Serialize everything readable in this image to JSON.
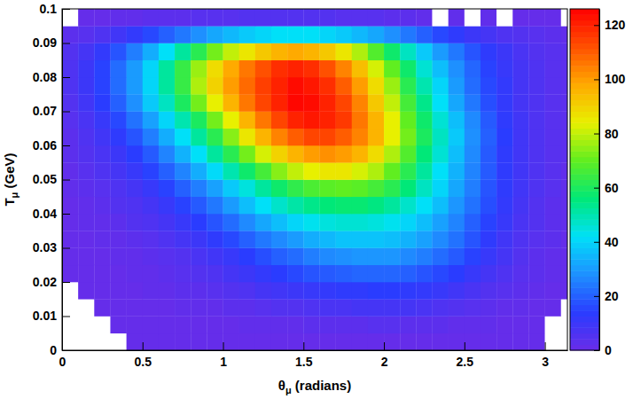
{
  "chart_data": {
    "type": "heatmap",
    "x_label": "θμ (radians)",
    "y_label": "Tμ (GeV)",
    "xlim": [
      0,
      3.14
    ],
    "ylim": [
      0,
      0.1
    ],
    "xticks": [
      0,
      0.5,
      1,
      1.5,
      2,
      2.5,
      3
    ],
    "yticks": [
      0,
      0.01,
      0.02,
      0.03,
      0.04,
      0.05,
      0.06,
      0.07,
      0.08,
      0.09,
      0.1
    ],
    "x_bins": [
      0,
      0.1,
      0.2,
      0.3,
      0.4,
      0.5,
      0.6,
      0.7,
      0.8,
      0.9,
      1,
      1.1,
      1.2,
      1.3,
      1.4,
      1.5,
      1.6,
      1.7,
      1.8,
      1.9,
      2,
      2.1,
      2.2,
      2.3,
      2.4,
      2.5,
      2.6,
      2.7,
      2.8,
      2.9,
      3,
      3.1,
      3.2
    ],
    "y_bins": [
      0,
      0.005,
      0.01,
      0.015,
      0.02,
      0.025,
      0.03,
      0.035,
      0.04,
      0.045,
      0.05,
      0.055,
      0.06,
      0.065,
      0.07,
      0.075,
      0.08,
      0.085,
      0.09,
      0.095,
      0.1
    ],
    "cells": [
      [
        0,
        0,
        0,
        0,
        1,
        1,
        1,
        1,
        1,
        1,
        1,
        1,
        1,
        1,
        1,
        1,
        1,
        1,
        1,
        1,
        1,
        1,
        1,
        1,
        1,
        1,
        1,
        1,
        1,
        1,
        0,
        0
      ],
      [
        0,
        0,
        0,
        1,
        1,
        1,
        1,
        1,
        1,
        1,
        1,
        2,
        2,
        2,
        2,
        3,
        3,
        3,
        3,
        4,
        4,
        3,
        3,
        3,
        2,
        2,
        2,
        1,
        1,
        1,
        0,
        0
      ],
      [
        0,
        0,
        1,
        1,
        1,
        1,
        1,
        2,
        2,
        2,
        3,
        3,
        4,
        5,
        5,
        6,
        7,
        7,
        8,
        8,
        8,
        8,
        7,
        6,
        5,
        4,
        3,
        2,
        2,
        1,
        1,
        0
      ],
      [
        0,
        1,
        1,
        1,
        1,
        2,
        2,
        3,
        3,
        4,
        5,
        6,
        8,
        9,
        10,
        11,
        12,
        13,
        13,
        14,
        14,
        13,
        12,
        11,
        9,
        7,
        5,
        4,
        3,
        2,
        1,
        1
      ],
      [
        1,
        1,
        1,
        1,
        2,
        2,
        3,
        4,
        5,
        6,
        8,
        10,
        12,
        14,
        16,
        18,
        19,
        20,
        21,
        21,
        21,
        20,
        18,
        16,
        14,
        11,
        8,
        6,
        4,
        3,
        2,
        1
      ],
      [
        1,
        1,
        1,
        2,
        2,
        3,
        4,
        5,
        7,
        9,
        11,
        14,
        17,
        20,
        22,
        25,
        27,
        28,
        29,
        29,
        29,
        27,
        25,
        22,
        19,
        15,
        11,
        8,
        5,
        3,
        2,
        1
      ],
      [
        1,
        1,
        2,
        2,
        3,
        4,
        6,
        8,
        10,
        13,
        16,
        20,
        24,
        27,
        30,
        33,
        35,
        37,
        37,
        37,
        36,
        34,
        31,
        27,
        23,
        18,
        13,
        9,
        6,
        4,
        3,
        1
      ],
      [
        1,
        2,
        2,
        3,
        5,
        6,
        8,
        11,
        14,
        18,
        22,
        27,
        32,
        36,
        40,
        43,
        45,
        46,
        46,
        45,
        43,
        40,
        36,
        31,
        26,
        20,
        15,
        11,
        7,
        5,
        3,
        2
      ],
      [
        1,
        2,
        3,
        5,
        6,
        8,
        11,
        15,
        19,
        24,
        30,
        36,
        42,
        47,
        51,
        54,
        56,
        57,
        57,
        55,
        52,
        47,
        42,
        36,
        29,
        23,
        17,
        12,
        8,
        5,
        3,
        2
      ],
      [
        2,
        3,
        4,
        6,
        8,
        11,
        15,
        20,
        25,
        31,
        38,
        45,
        52,
        58,
        63,
        67,
        69,
        70,
        69,
        66,
        62,
        56,
        48,
        40,
        32,
        25,
        18,
        13,
        9,
        6,
        4,
        2
      ],
      [
        2,
        4,
        6,
        8,
        11,
        15,
        20,
        26,
        33,
        41,
        50,
        58,
        66,
        74,
        80,
        84,
        86,
        86,
        82,
        78,
        70,
        62,
        52,
        42,
        34,
        26,
        19,
        13,
        9,
        6,
        4,
        2
      ],
      [
        3,
        5,
        7,
        10,
        14,
        19,
        26,
        34,
        42,
        52,
        62,
        72,
        82,
        90,
        96,
        100,
        102,
        100,
        96,
        88,
        78,
        68,
        56,
        46,
        36,
        27,
        19,
        13,
        9,
        6,
        4,
        3
      ],
      [
        3,
        6,
        9,
        13,
        18,
        25,
        33,
        42,
        52,
        62,
        74,
        86,
        96,
        104,
        110,
        114,
        114,
        110,
        104,
        96,
        84,
        72,
        60,
        48,
        38,
        28,
        20,
        14,
        9,
        6,
        4,
        3
      ],
      [
        4,
        7,
        11,
        16,
        23,
        31,
        40,
        50,
        60,
        72,
        84,
        96,
        106,
        114,
        120,
        122,
        120,
        116,
        106,
        96,
        84,
        70,
        58,
        46,
        36,
        27,
        19,
        13,
        9,
        6,
        4,
        3
      ],
      [
        5,
        9,
        14,
        20,
        28,
        38,
        48,
        60,
        72,
        84,
        96,
        106,
        114,
        120,
        125,
        124,
        120,
        114,
        104,
        92,
        80,
        66,
        54,
        42,
        32,
        24,
        17,
        12,
        8,
        6,
        4,
        3
      ],
      [
        6,
        10,
        15,
        22,
        30,
        40,
        52,
        64,
        78,
        90,
        100,
        108,
        115,
        120,
        124,
        122,
        118,
        110,
        100,
        88,
        76,
        62,
        50,
        40,
        30,
        22,
        16,
        12,
        8,
        6,
        4,
        3
      ],
      [
        6,
        10,
        15,
        22,
        30,
        40,
        52,
        64,
        76,
        88,
        98,
        106,
        112,
        118,
        120,
        118,
        112,
        104,
        94,
        82,
        70,
        58,
        46,
        36,
        28,
        21,
        15,
        11,
        8,
        6,
        4,
        3
      ],
      [
        5,
        8,
        12,
        18,
        25,
        33,
        42,
        52,
        62,
        72,
        80,
        86,
        92,
        96,
        98,
        96,
        92,
        86,
        78,
        68,
        58,
        48,
        38,
        30,
        24,
        18,
        13,
        10,
        7,
        5,
        4,
        3
      ],
      [
        3,
        4,
        6,
        9,
        12,
        16,
        20,
        24,
        28,
        32,
        35,
        38,
        40,
        42,
        42,
        42,
        40,
        38,
        35,
        32,
        28,
        24,
        20,
        16,
        13,
        10,
        8,
        6,
        5,
        4,
        3,
        2
      ],
      [
        0,
        1,
        1,
        2,
        2,
        3,
        3,
        3,
        4,
        4,
        4,
        5,
        5,
        5,
        5,
        5,
        5,
        4,
        4,
        4,
        3,
        3,
        2,
        0,
        2,
        0,
        2,
        0,
        1,
        1,
        1,
        0
      ]
    ],
    "colors": [
      "#6a2ce8",
      "#2a3cff",
      "#1e90ff",
      "#00e0f8",
      "#00e878",
      "#60ee20",
      "#e8f000",
      "#ffaa00",
      "#ff5000",
      "#ff0000"
    ],
    "colorbar": {
      "range": [
        0,
        126
      ],
      "ticks": [
        0,
        20,
        40,
        60,
        80,
        100,
        120
      ]
    }
  }
}
